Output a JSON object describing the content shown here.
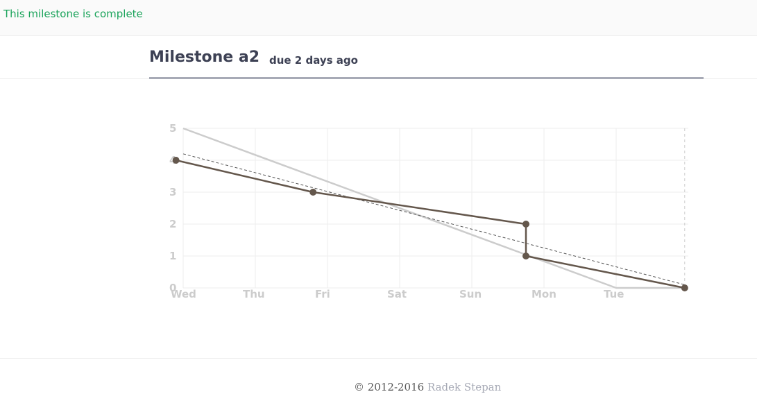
{
  "notice": {
    "text": "This milestone is complete"
  },
  "milestone": {
    "title": "Milestone a2",
    "due": "due 2 days ago"
  },
  "footer": {
    "copyright": "© 2012-2016",
    "author": "Radek Stepan"
  },
  "colors": {
    "notice_text": "#1aa35a",
    "actual_line": "#64574c",
    "ideal_line": "#cccccc",
    "trend_line": "#555555",
    "grid": "#eeeeee",
    "axis_labels": "#cccccc"
  },
  "chart_data": {
    "type": "line",
    "title": "",
    "xlabel": "",
    "ylabel": "",
    "x_tick_labels": [
      "Wed",
      "Thu",
      "Fri",
      "Sat",
      "Sun",
      "Mon",
      "Tue"
    ],
    "y_tick_labels": [
      "0",
      "1",
      "2",
      "3",
      "4",
      "5"
    ],
    "xlim": [
      0,
      7
    ],
    "ylim": [
      0,
      5
    ],
    "grid": true,
    "series": [
      {
        "kind": "ideal",
        "style": "solid-light",
        "points": [
          [
            0,
            5
          ],
          [
            6,
            0
          ],
          [
            6.95,
            0
          ]
        ]
      },
      {
        "kind": "trend",
        "style": "dashed",
        "points": [
          [
            0,
            4.2
          ],
          [
            6.95,
            0.1
          ]
        ]
      },
      {
        "kind": "actual",
        "style": "solid-dark",
        "points": [
          [
            -0.1,
            4
          ],
          [
            1.8,
            3
          ],
          [
            4.75,
            2
          ],
          [
            4.75,
            1
          ],
          [
            6.95,
            0
          ]
        ],
        "markers": true
      }
    ],
    "today_marker_x": 6.95
  }
}
